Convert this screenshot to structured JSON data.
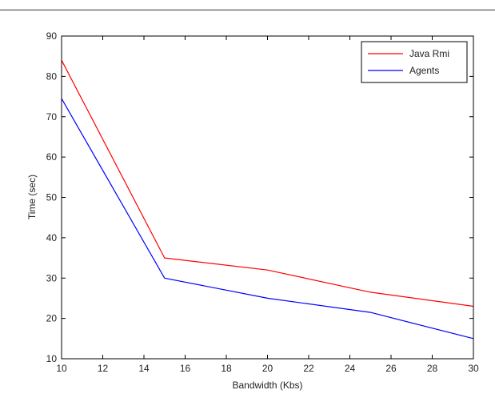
{
  "chart_data": {
    "type": "line",
    "xlabel": "Bandwidth (Kbs)",
    "ylabel": "Time (sec)",
    "xlim": [
      10,
      30
    ],
    "ylim": [
      10,
      90
    ],
    "xticks": [
      "10",
      "12",
      "14",
      "16",
      "18",
      "20",
      "22",
      "24",
      "26",
      "28",
      "30"
    ],
    "yticks": [
      "10",
      "20",
      "30",
      "40",
      "50",
      "60",
      "70",
      "80",
      "90"
    ],
    "grid": false,
    "legend_position": "top-right",
    "series": [
      {
        "name": "Java Rmi",
        "color": "#ff0000",
        "points": [
          [
            10,
            84
          ],
          [
            15,
            35
          ],
          [
            20,
            32
          ],
          [
            25,
            26.5
          ],
          [
            30,
            23
          ]
        ]
      },
      {
        "name": "Agents",
        "color": "#0000ff",
        "points": [
          [
            10,
            74.5
          ],
          [
            15,
            30
          ],
          [
            20,
            25
          ],
          [
            25,
            21.5
          ],
          [
            30,
            15
          ]
        ]
      }
    ]
  }
}
